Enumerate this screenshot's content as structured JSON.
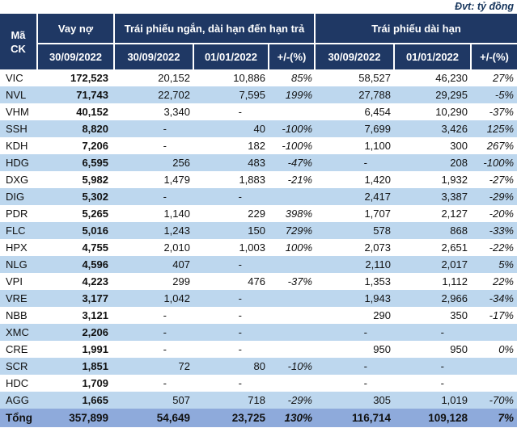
{
  "colors": {
    "header_bg": "#1F3864",
    "stripe_bg": "#BDD7EE",
    "total_bg": "#8EAADB"
  },
  "chart_data": {
    "type": "table",
    "unit_label": "Đvt: tỷ đồng",
    "column_groups": [
      {
        "label": "Mã\nCK"
      },
      {
        "label": "Vay nợ"
      },
      {
        "label": "Trái phiếu ngắn, dài hạn đến hạn trả"
      },
      {
        "label": "Trái phiếu dài hạn"
      }
    ],
    "sub_headers": [
      "30/09/2022",
      "30/09/2022",
      "01/01/2022",
      "+/-(%)",
      "30/09/2022",
      "01/01/2022",
      "+/-(%)"
    ],
    "rows": [
      {
        "ticker": "VIC",
        "debt": "172,523",
        "cells": [
          "20,152",
          "10,886",
          "85%",
          "58,527",
          "46,230",
          "27%"
        ]
      },
      {
        "ticker": "NVL",
        "debt": "71,743",
        "cells": [
          "22,702",
          "7,595",
          "199%",
          "27,788",
          "29,295",
          "-5%"
        ]
      },
      {
        "ticker": "VHM",
        "debt": "40,152",
        "cells": [
          "3,340",
          "-",
          "",
          "6,454",
          "10,290",
          "-37%"
        ]
      },
      {
        "ticker": "SSH",
        "debt": "8,820",
        "cells": [
          "-",
          "40",
          "-100%",
          "7,699",
          "3,426",
          "125%"
        ]
      },
      {
        "ticker": "KDH",
        "debt": "7,206",
        "cells": [
          "-",
          "182",
          "-100%",
          "1,100",
          "300",
          "267%"
        ]
      },
      {
        "ticker": "HDG",
        "debt": "6,595",
        "cells": [
          "256",
          "483",
          "-47%",
          "-",
          "208",
          "-100%"
        ]
      },
      {
        "ticker": "DXG",
        "debt": "5,982",
        "cells": [
          "1,479",
          "1,883",
          "-21%",
          "1,420",
          "1,932",
          "-27%"
        ]
      },
      {
        "ticker": "DIG",
        "debt": "5,302",
        "cells": [
          "-",
          "-",
          "",
          "2,417",
          "3,387",
          "-29%"
        ]
      },
      {
        "ticker": "PDR",
        "debt": "5,265",
        "cells": [
          "1,140",
          "229",
          "398%",
          "1,707",
          "2,127",
          "-20%"
        ]
      },
      {
        "ticker": "FLC",
        "debt": "5,016",
        "cells": [
          "1,243",
          "150",
          "729%",
          "578",
          "868",
          "-33%"
        ]
      },
      {
        "ticker": "HPX",
        "debt": "4,755",
        "cells": [
          "2,010",
          "1,003",
          "100%",
          "2,073",
          "2,651",
          "-22%"
        ]
      },
      {
        "ticker": "NLG",
        "debt": "4,596",
        "cells": [
          "407",
          "-",
          "",
          "2,110",
          "2,017",
          "5%"
        ]
      },
      {
        "ticker": "VPI",
        "debt": "4,223",
        "cells": [
          "299",
          "476",
          "-37%",
          "1,353",
          "1,112",
          "22%"
        ]
      },
      {
        "ticker": "VRE",
        "debt": "3,177",
        "cells": [
          "1,042",
          "-",
          "",
          "1,943",
          "2,966",
          "-34%"
        ]
      },
      {
        "ticker": "NBB",
        "debt": "3,121",
        "cells": [
          "-",
          "-",
          "",
          "290",
          "350",
          "-17%"
        ]
      },
      {
        "ticker": "XMC",
        "debt": "2,206",
        "cells": [
          "-",
          "-",
          "",
          "-",
          "-",
          ""
        ]
      },
      {
        "ticker": "CRE",
        "debt": "1,991",
        "cells": [
          "-",
          "-",
          "",
          "950",
          "950",
          "0%"
        ]
      },
      {
        "ticker": "SCR",
        "debt": "1,851",
        "cells": [
          "72",
          "80",
          "-10%",
          "-",
          "-",
          ""
        ]
      },
      {
        "ticker": "HDC",
        "debt": "1,709",
        "cells": [
          "-",
          "-",
          "",
          "-",
          "-",
          ""
        ]
      },
      {
        "ticker": "AGG",
        "debt": "1,665",
        "cells": [
          "507",
          "718",
          "-29%",
          "305",
          "1,019",
          "-70%"
        ]
      }
    ],
    "total": {
      "label": "Tổng",
      "debt": "357,899",
      "cells": [
        "54,649",
        "23,725",
        "130%",
        "116,714",
        "109,128",
        "7%"
      ]
    }
  }
}
